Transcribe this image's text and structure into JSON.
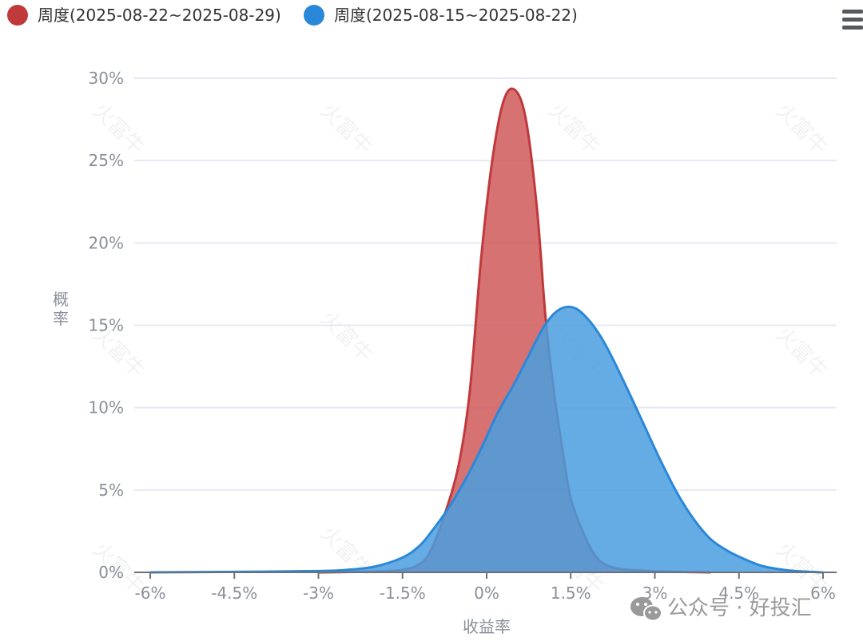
{
  "chart_data": {
    "type": "area",
    "title": "",
    "xlabel": "收益率",
    "ylabel": "概率",
    "xlim": [
      -6,
      6
    ],
    "ylim": [
      0,
      30
    ],
    "x_ticks": [
      {
        "value": -6,
        "label": "-6%"
      },
      {
        "value": -4.5,
        "label": "-4.5%"
      },
      {
        "value": -3,
        "label": "-3%"
      },
      {
        "value": -1.5,
        "label": "-1.5%"
      },
      {
        "value": 0,
        "label": "0%"
      },
      {
        "value": 1.5,
        "label": "1.5%"
      },
      {
        "value": 3,
        "label": "3%"
      },
      {
        "value": 4.5,
        "label": "4.5%"
      },
      {
        "value": 6,
        "label": "6%"
      }
    ],
    "y_ticks": [
      {
        "value": 0,
        "label": "0%"
      },
      {
        "value": 5,
        "label": "5%"
      },
      {
        "value": 10,
        "label": "10%"
      },
      {
        "value": 15,
        "label": "15%"
      },
      {
        "value": 20,
        "label": "20%"
      },
      {
        "value": 25,
        "label": "25%"
      },
      {
        "value": 30,
        "label": "30%"
      }
    ],
    "grid": true,
    "legend_position": "top-left",
    "series": [
      {
        "name": "周度(2025-08-22~2025-08-29)",
        "color": "#c0393b",
        "fill": "#d0595a",
        "x": [
          -3,
          -2,
          -1.5,
          -1.2,
          -1.0,
          -0.75,
          -0.5,
          -0.3,
          -0.1,
          0.1,
          0.3,
          0.5,
          0.7,
          0.9,
          1.05,
          1.2,
          1.35,
          1.5,
          1.7,
          1.9,
          2.1,
          2.4,
          2.8,
          3.2,
          3.6,
          4.0
        ],
        "values": [
          0,
          0.05,
          0.15,
          0.5,
          1.3,
          3.5,
          6.5,
          11,
          19,
          25,
          28.6,
          29.3,
          27.5,
          22,
          15.5,
          11,
          7.5,
          4.5,
          2.6,
          1.2,
          0.5,
          0.2,
          0.1,
          0.05,
          0.02,
          0
        ]
      },
      {
        "name": "周度(2025-08-15~2025-08-22)",
        "color": "#2b88d8",
        "fill": "#4a9ddf",
        "x": [
          -6,
          -4.5,
          -3,
          -2.5,
          -2.0,
          -1.5,
          -1.2,
          -1.0,
          -0.7,
          -0.4,
          -0.1,
          0.2,
          0.5,
          0.8,
          1.0,
          1.2,
          1.4,
          1.6,
          1.8,
          2.0,
          2.2,
          2.5,
          2.8,
          3.1,
          3.4,
          3.7,
          4.0,
          4.3,
          4.6,
          4.9,
          5.2,
          5.5,
          6.0
        ],
        "values": [
          0,
          0.03,
          0.08,
          0.15,
          0.35,
          0.9,
          1.6,
          2.4,
          3.8,
          5.5,
          7.5,
          9.7,
          11.5,
          13.5,
          14.8,
          15.7,
          16.1,
          16.0,
          15.4,
          14.5,
          13.3,
          11.2,
          9.0,
          6.8,
          4.8,
          3.2,
          2.0,
          1.3,
          0.8,
          0.4,
          0.2,
          0.08,
          0
        ]
      }
    ]
  },
  "watermark_text": "火富牛",
  "credit": {
    "icon": "wechat-icon",
    "text": "公众号 · 好投汇"
  },
  "menu": {
    "icon": "hamburger-menu-icon"
  }
}
